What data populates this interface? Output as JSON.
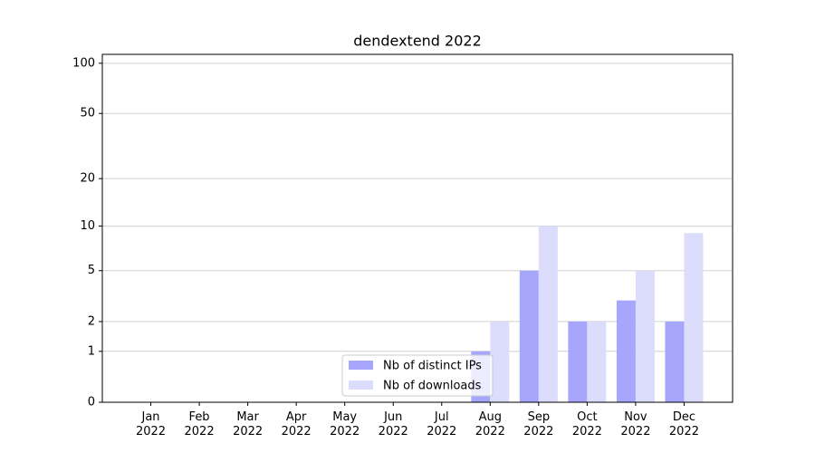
{
  "chart_data": {
    "type": "bar",
    "title": "dendextend 2022",
    "categories": [
      "Jan\n2022",
      "Feb\n2022",
      "Mar\n2022",
      "Apr\n2022",
      "May\n2022",
      "Jun\n2022",
      "Jul\n2022",
      "Aug\n2022",
      "Sep\n2022",
      "Oct\n2022",
      "Nov\n2022",
      "Dec\n2022"
    ],
    "series": [
      {
        "name": "Nb of distinct IPs",
        "color": "#a6a6fc",
        "values": [
          0,
          0,
          0,
          0,
          0,
          0,
          0,
          1,
          5,
          2,
          3,
          2
        ]
      },
      {
        "name": "Nb of downloads",
        "color": "#dcdcfc",
        "values": [
          0,
          0,
          0,
          0,
          0,
          0,
          0,
          2,
          10,
          2,
          5,
          9
        ]
      }
    ],
    "scale": "log1p",
    "ylim": [
      0,
      113
    ],
    "yticks": [
      0,
      1,
      2,
      5,
      10,
      20,
      50,
      100
    ],
    "grid": true,
    "legend": "lower center"
  }
}
